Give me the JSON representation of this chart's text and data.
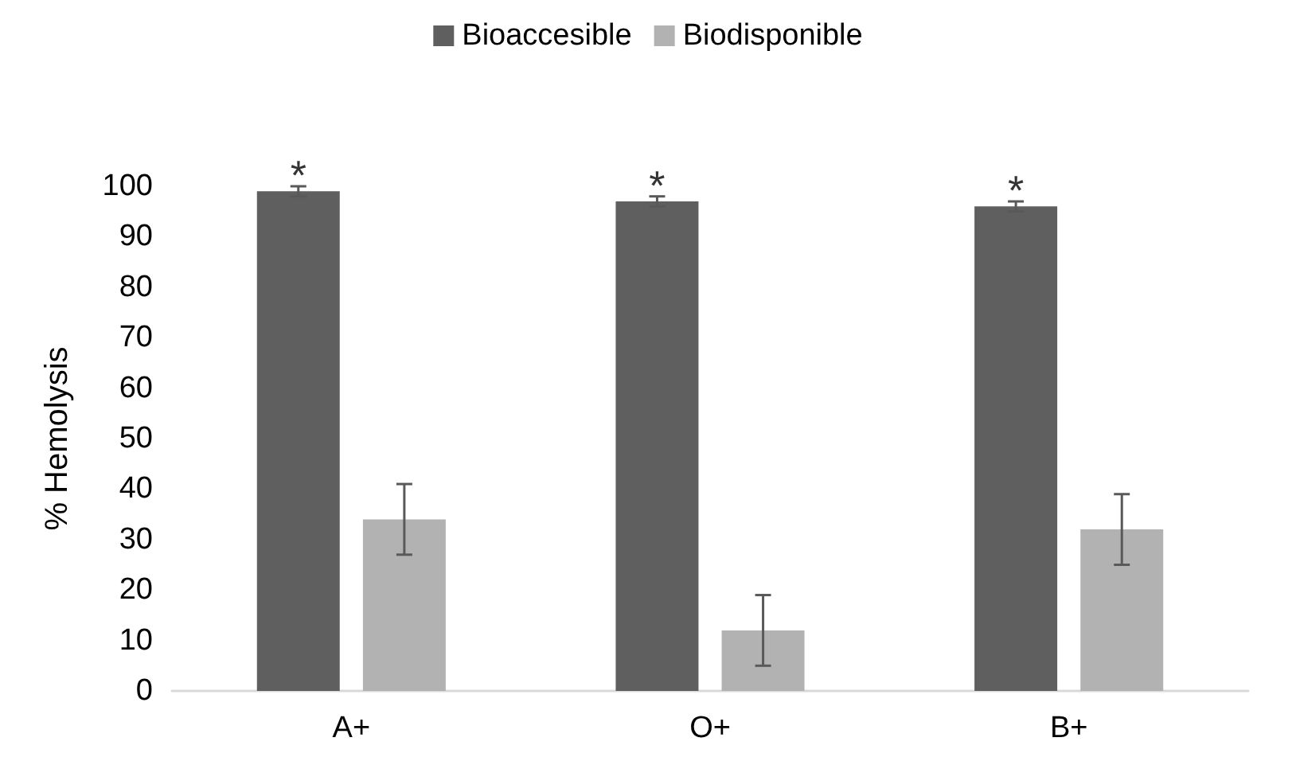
{
  "chart_data": {
    "type": "bar",
    "ylabel": "% Hemolysis",
    "categories": [
      "A+",
      "O+",
      "B+"
    ],
    "series": [
      {
        "name": "Bioaccesible",
        "color": "#5f5f5f",
        "values": [
          99,
          97,
          96
        ],
        "errors": [
          1,
          1,
          1
        ]
      },
      {
        "name": "Biodisponible",
        "color": "#b2b2b2",
        "values": [
          34,
          12,
          32
        ],
        "errors": [
          7,
          7,
          7
        ]
      }
    ],
    "annotations": [
      "*",
      "*",
      "*"
    ],
    "ylim": [
      0,
      100
    ],
    "yticks": [
      0,
      10,
      20,
      30,
      40,
      50,
      60,
      70,
      80,
      90,
      100
    ],
    "grid": false,
    "legend": "top"
  }
}
